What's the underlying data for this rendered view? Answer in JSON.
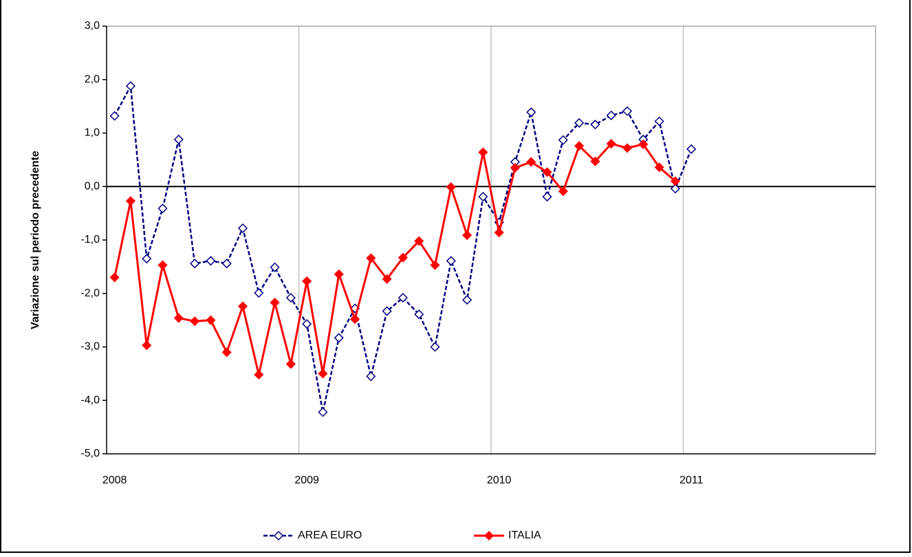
{
  "chart_data": {
    "type": "line",
    "ylabel": "Variazione sul periodo precedente",
    "categories": [
      "2008",
      null,
      null,
      null,
      null,
      null,
      null,
      null,
      null,
      null,
      null,
      null,
      "2009",
      null,
      null,
      null,
      null,
      null,
      null,
      null,
      null,
      null,
      null,
      null,
      "2010",
      null,
      null,
      null,
      null,
      null,
      null,
      null,
      null,
      null,
      null,
      null,
      "2011",
      null,
      null,
      null,
      null,
      null,
      null,
      null,
      null,
      null,
      null,
      null
    ],
    "series": [
      {
        "name": "AREA EURO",
        "color": "#000080",
        "dashed": true,
        "marker": "open-diamond",
        "values": [
          1.32,
          1.88,
          -1.35,
          -0.41,
          0.88,
          -1.44,
          -1.39,
          -1.44,
          -0.78,
          -1.99,
          -1.51,
          -2.08,
          -2.57,
          -4.22,
          -2.83,
          -2.28,
          -3.55,
          -2.33,
          -2.08,
          -2.39,
          -3.0,
          -1.39,
          -2.12,
          -0.19,
          -0.67,
          0.46,
          1.39,
          -0.19,
          0.87,
          1.19,
          1.16,
          1.33,
          1.41,
          0.88,
          1.22,
          -0.04,
          0.7,
          null,
          null,
          null,
          null,
          null,
          null,
          null,
          null,
          null,
          null,
          null
        ]
      },
      {
        "name": "ITALIA",
        "color": "#ff0000",
        "dashed": false,
        "marker": "filled-diamond",
        "values": [
          -1.7,
          -0.27,
          -2.97,
          -1.47,
          -2.46,
          -2.52,
          -2.5,
          -3.1,
          -2.24,
          -3.52,
          -2.17,
          -3.32,
          -1.77,
          -3.5,
          -1.64,
          -2.48,
          -1.34,
          -1.73,
          -1.33,
          -1.02,
          -1.47,
          -0.01,
          -0.91,
          0.64,
          -0.86,
          0.35,
          0.46,
          0.27,
          -0.09,
          0.76,
          0.47,
          0.8,
          0.72,
          0.79,
          0.36,
          0.1,
          null,
          null,
          null,
          null,
          null,
          null,
          null,
          null,
          null,
          null,
          null,
          null
        ]
      }
    ],
    "ylim": [
      -5,
      3
    ],
    "yticks": [
      {
        "value": -5,
        "label": "-5,0"
      },
      {
        "value": -4,
        "label": "-4,0"
      },
      {
        "value": -3,
        "label": "-3,0"
      },
      {
        "value": -2,
        "label": "-2,0"
      },
      {
        "value": -1,
        "label": "-1,0"
      },
      {
        "value": 0,
        "label": "0,0"
      },
      {
        "value": 1,
        "label": "1,0"
      },
      {
        "value": 2,
        "label": "2,0"
      },
      {
        "value": 3,
        "label": "3,0"
      }
    ],
    "grid": true,
    "legend": "bottom"
  }
}
